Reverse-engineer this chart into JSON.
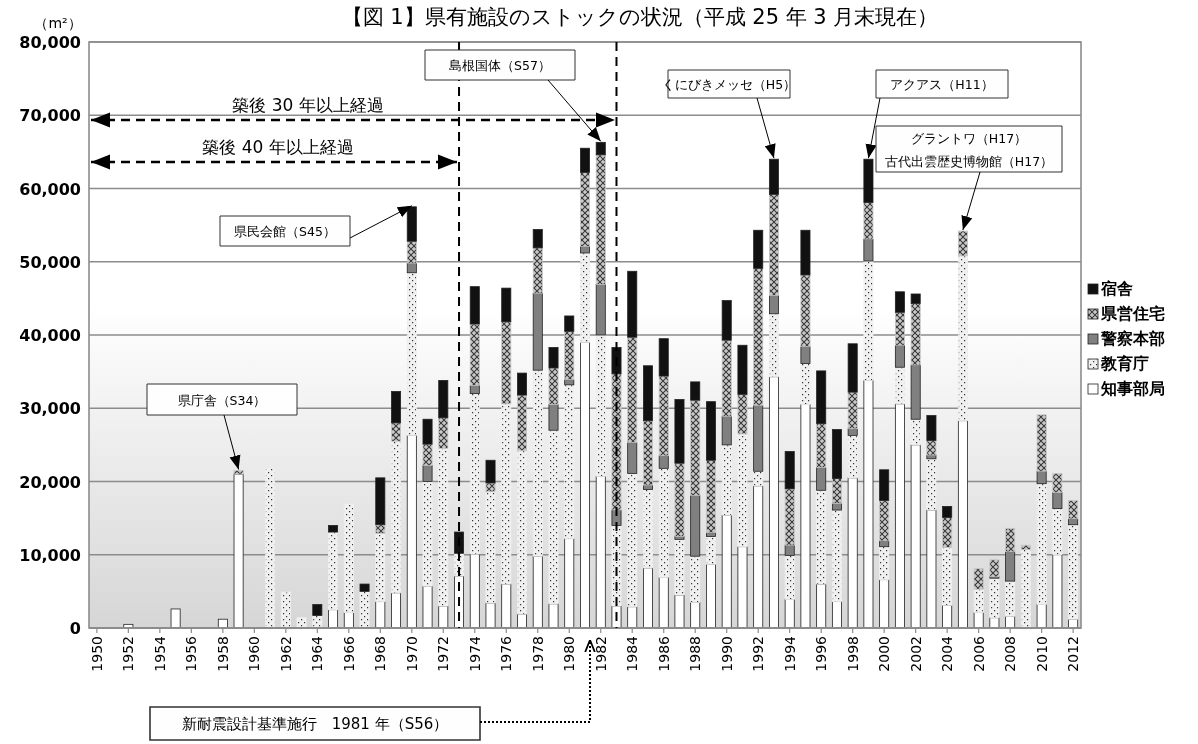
{
  "chart_data": {
    "type": "bar",
    "stacked": true,
    "title": "【図 1】県有施設のストックの状況（平成 25 年 3 月末現在）",
    "ylabel": "（m²）",
    "x": [
      1952,
      1953,
      1954,
      1955,
      1956,
      1957,
      1958,
      1959,
      1960,
      1961,
      1962,
      1963,
      1964,
      1965,
      1966,
      1967,
      1968,
      1969,
      1970,
      1971,
      1972,
      1973,
      1974,
      1975,
      1976,
      1977,
      1978,
      1979,
      1980,
      1981,
      1982,
      1983,
      1984,
      1985,
      1986,
      1987,
      1988,
      1989,
      1990,
      1991,
      1992,
      1993,
      1994,
      1995,
      1996,
      1997,
      1998,
      1999,
      2000,
      2001,
      2002,
      2003,
      2004,
      2005,
      2006,
      2007,
      2008,
      2009,
      2010,
      2011,
      2012
    ],
    "xlim": [
      1949.5,
      2012.5
    ],
    "xticks": [
      1950,
      1952,
      1954,
      1956,
      1958,
      1960,
      1962,
      1964,
      1966,
      1968,
      1970,
      1972,
      1974,
      1976,
      1978,
      1980,
      1982,
      1984,
      1986,
      1988,
      1990,
      1992,
      1994,
      1996,
      1998,
      2000,
      2002,
      2004,
      2006,
      2008,
      2010,
      2012
    ],
    "ylim": [
      0,
      80000
    ],
    "yticks": [
      {
        "value": 0,
        "label": "0"
      },
      {
        "value": 10000,
        "label": "10,000"
      },
      {
        "value": 20000,
        "label": "20,000"
      },
      {
        "value": 30000,
        "label": "30,000"
      },
      {
        "value": 40000,
        "label": "40,000"
      },
      {
        "value": 50000,
        "label": "50,000"
      },
      {
        "value": 60000,
        "label": "60,000"
      },
      {
        "value": 70000,
        "label": "70,000"
      },
      {
        "value": 80000,
        "label": "80,000"
      }
    ],
    "grid": "y",
    "legend": "right",
    "series": [
      {
        "name": "知事部局",
        "color": "#ffffff",
        "values": [
          500,
          null,
          null,
          2600,
          null,
          null,
          1200,
          21000,
          null,
          null,
          null,
          null,
          null,
          2500,
          2100,
          null,
          3600,
          4800,
          26300,
          5700,
          3000,
          7100,
          10100,
          3400,
          6000,
          1900,
          9800,
          3300,
          12200,
          39000,
          20700,
          3000,
          2900,
          8200,
          6900,
          4500,
          3500,
          8700,
          15400,
          11100,
          19400,
          34300,
          3900,
          30500,
          6000,
          3600,
          20500,
          33800,
          6600,
          30600,
          25000,
          16100,
          3100,
          28300,
          2100,
          1400,
          1600,
          null,
          3200,
          10000,
          1200
        ]
      },
      {
        "name": "教育庁",
        "color": "#f0f0f0",
        "values": [
          null,
          null,
          null,
          null,
          null,
          null,
          null,
          null,
          null,
          21800,
          4900,
          1400,
          1700,
          10600,
          14800,
          5000,
          9300,
          20700,
          22200,
          14300,
          21500,
          3100,
          21900,
          15200,
          24600,
          22300,
          25400,
          23700,
          21000,
          12200,
          19300,
          11000,
          18200,
          10700,
          14900,
          7600,
          6300,
          3800,
          9600,
          15400,
          2000,
          8600,
          6000,
          5600,
          12800,
          12500,
          5800,
          16300,
          4500,
          5000,
          3500,
          7000,
          7900,
          22500,
          3200,
          5400,
          4800,
          10700,
          16500,
          6300,
          12900
        ]
      },
      {
        "name": "警察本部",
        "color": "#808080",
        "values": [
          null,
          null,
          null,
          null,
          null,
          null,
          null,
          null,
          null,
          null,
          null,
          null,
          null,
          null,
          null,
          null,
          null,
          null,
          1300,
          2200,
          null,
          null,
          1100,
          null,
          null,
          null,
          10500,
          3500,
          700,
          900,
          6900,
          2100,
          4200,
          600,
          1700,
          400,
          8300,
          500,
          3900,
          null,
          9000,
          2500,
          1400,
          2300,
          3100,
          900,
          900,
          3000,
          800,
          3000,
          7400,
          500,
          null,
          null,
          null,
          200,
          4000,
          null,
          1700,
          2200,
          800
        ]
      },
      {
        "name": "県営住宅",
        "color": "#c8c8c8",
        "values": [
          null,
          null,
          null,
          null,
          null,
          null,
          null,
          500,
          null,
          null,
          null,
          null,
          null,
          null,
          null,
          null,
          1200,
          2500,
          3000,
          2900,
          4200,
          null,
          8400,
          1200,
          11200,
          7600,
          6200,
          5000,
          6600,
          10100,
          17700,
          18600,
          14400,
          8800,
          10900,
          10000,
          13000,
          9900,
          10400,
          5400,
          18700,
          13800,
          7700,
          9800,
          6000,
          3400,
          5000,
          5000,
          5500,
          4500,
          8400,
          2000,
          4100,
          3400,
          2800,
          2300,
          3200,
          600,
          7700,
          2600,
          2500
        ]
      },
      {
        "name": "宿舎",
        "color": "#111111",
        "values": [
          null,
          null,
          null,
          null,
          null,
          null,
          null,
          null,
          null,
          null,
          null,
          null,
          1500,
          900,
          null,
          1000,
          6400,
          4300,
          4700,
          3400,
          5100,
          2900,
          5100,
          3100,
          4600,
          3000,
          2500,
          2800,
          2100,
          3300,
          1700,
          3600,
          9000,
          7500,
          5100,
          8700,
          2500,
          8000,
          5400,
          6700,
          5200,
          4800,
          5100,
          6100,
          7200,
          6700,
          6600,
          5900,
          4200,
          2800,
          1300,
          3400,
          1500,
          null,
          null,
          null,
          null,
          null,
          null,
          null,
          null
        ]
      }
    ],
    "ref_lines": [
      {
        "axis": "x",
        "value": 1973,
        "color": "#000000",
        "line_style": "dashed"
      },
      {
        "axis": "x",
        "value": 1983,
        "color": "#000000",
        "line_style": "dashed"
      }
    ],
    "annotations": [
      {
        "text": "県庁舎（S34）",
        "x": 1959,
        "y": 21500
      },
      {
        "text": "県民会館（S45）",
        "x": 1970,
        "y": 57500
      },
      {
        "text": "島根国体（S57）",
        "x": 1982,
        "y": 66300
      },
      {
        "text": "くにびきメッセ（H5）",
        "x": 1993,
        "y": 64000
      },
      {
        "text": "アクアス（H11）",
        "x": 1999,
        "y": 64000
      },
      "グラントワ（H17）",
      {
        "text": "古代出雲歴史博物館（H17）",
        "x": 2005,
        "y": 54200
      },
      "新耐震設計基準施行　1981 年（S56）",
      "築後 40 年以上経過",
      "築後 30 年以上経過"
    ]
  }
}
